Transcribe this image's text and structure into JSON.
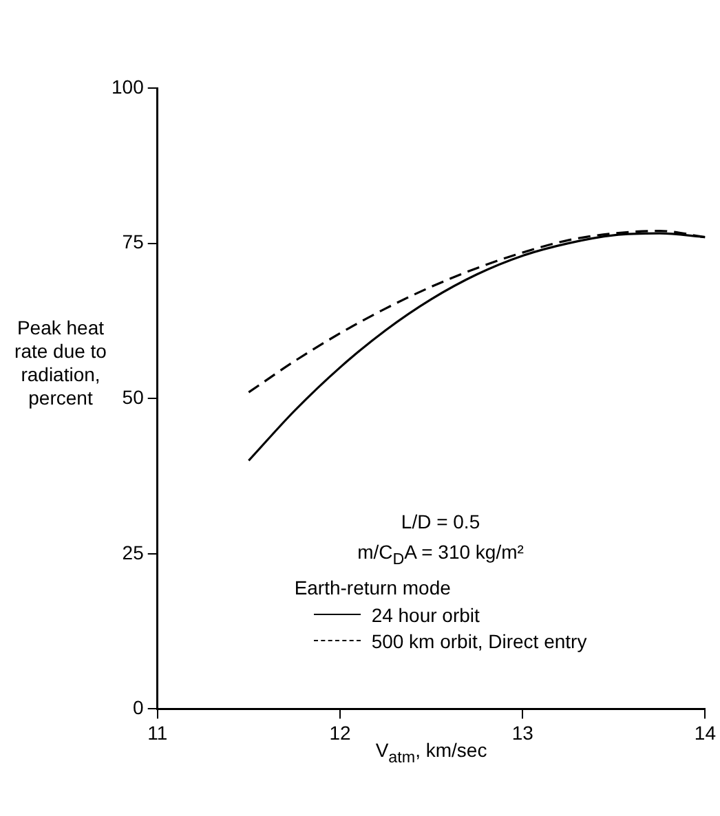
{
  "chart_data": {
    "type": "line",
    "xlabel": "V$_{atm}$, km/sec",
    "ylabel": "Peak heat rate due to radiation, percent",
    "legend_title": "Earth-return mode",
    "annotations": [
      "L/D = 0.5",
      "m/C$_{D}$A = 310 kg/m²"
    ],
    "x": [
      11.5,
      11.75,
      12,
      12.25,
      12.5,
      12.75,
      13,
      13.25,
      13.5,
      13.75,
      14
    ],
    "series": [
      {
        "name": "24 hour orbit",
        "color": "#000000",
        "line_style": "solid",
        "values": [
          40,
          48,
          55,
          61,
          66,
          70,
          73,
          75,
          76.3,
          76.6,
          76
        ]
      },
      {
        "name": "500 km orbit, Direct entry",
        "color": "#000000",
        "line_style": "dashed",
        "values": [
          51,
          56,
          60.5,
          64.5,
          68,
          71,
          73.5,
          75.5,
          76.6,
          77,
          76
        ]
      }
    ],
    "xlim": [
      11,
      14
    ],
    "xticks": [
      11,
      12,
      13,
      14
    ],
    "ylim": [
      0,
      100
    ],
    "yticks": [
      0,
      25,
      50,
      75,
      100
    ],
    "grid": false,
    "legend": "bottom",
    "marker": "none"
  }
}
